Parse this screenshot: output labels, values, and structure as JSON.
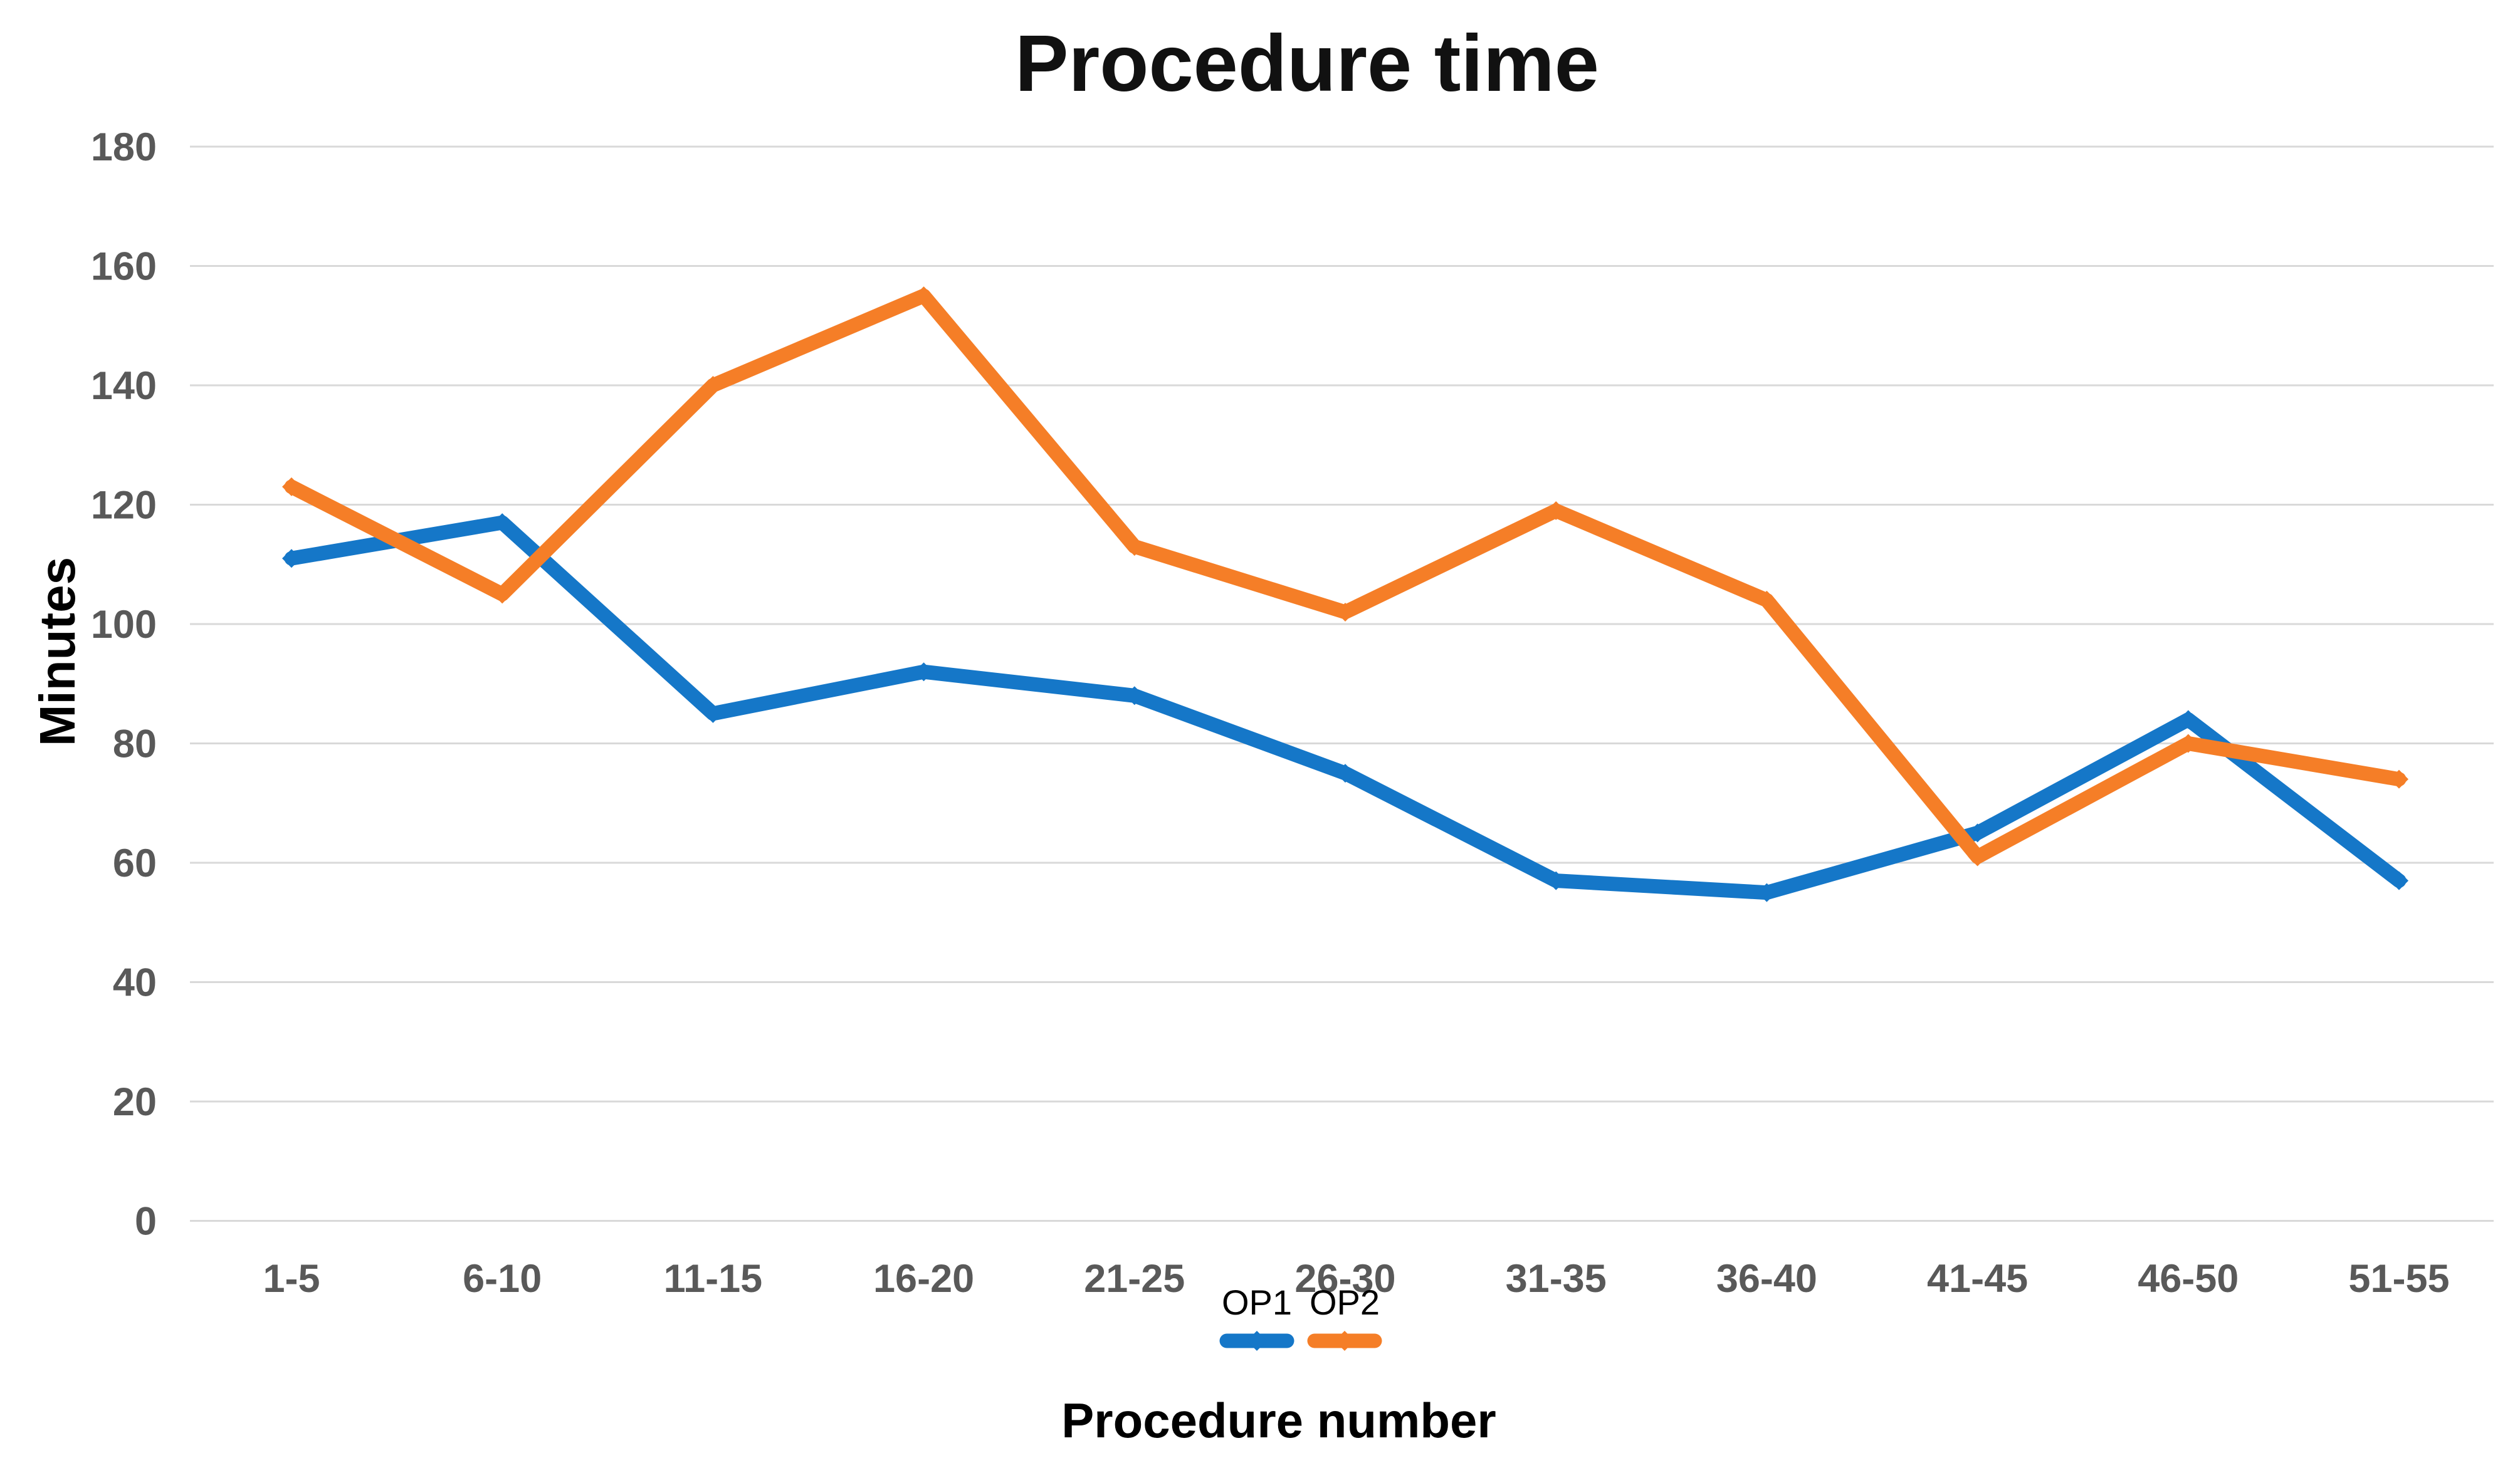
{
  "title": "Procedure time",
  "chart_data": {
    "type": "line",
    "title": "Procedure time",
    "xlabel": "Procedure number",
    "ylabel": "Minutes",
    "categories": [
      "1-5",
      "6-10",
      "11-15",
      "16-20",
      "21-25",
      "26-30",
      "31-35",
      "36-40",
      "41-45",
      "46-50",
      "51-55"
    ],
    "series": [
      {
        "name": "OP1",
        "color": "#1577C8",
        "values": [
          111,
          117,
          85,
          92,
          88,
          75,
          57,
          55,
          65,
          84,
          57
        ]
      },
      {
        "name": "OP2",
        "color": "#F57E27",
        "values": [
          123,
          105,
          140,
          155,
          113,
          102,
          119,
          104,
          61,
          80,
          74
        ]
      }
    ],
    "ylim": [
      0,
      180
    ],
    "y_ticks": [
      0,
      20,
      40,
      60,
      80,
      100,
      120,
      140,
      160,
      180
    ],
    "grid": true,
    "legend_position": "bottom",
    "grid_color": "#D9D9D9",
    "tick_label_color": "#595959",
    "text_color": "#000000"
  }
}
